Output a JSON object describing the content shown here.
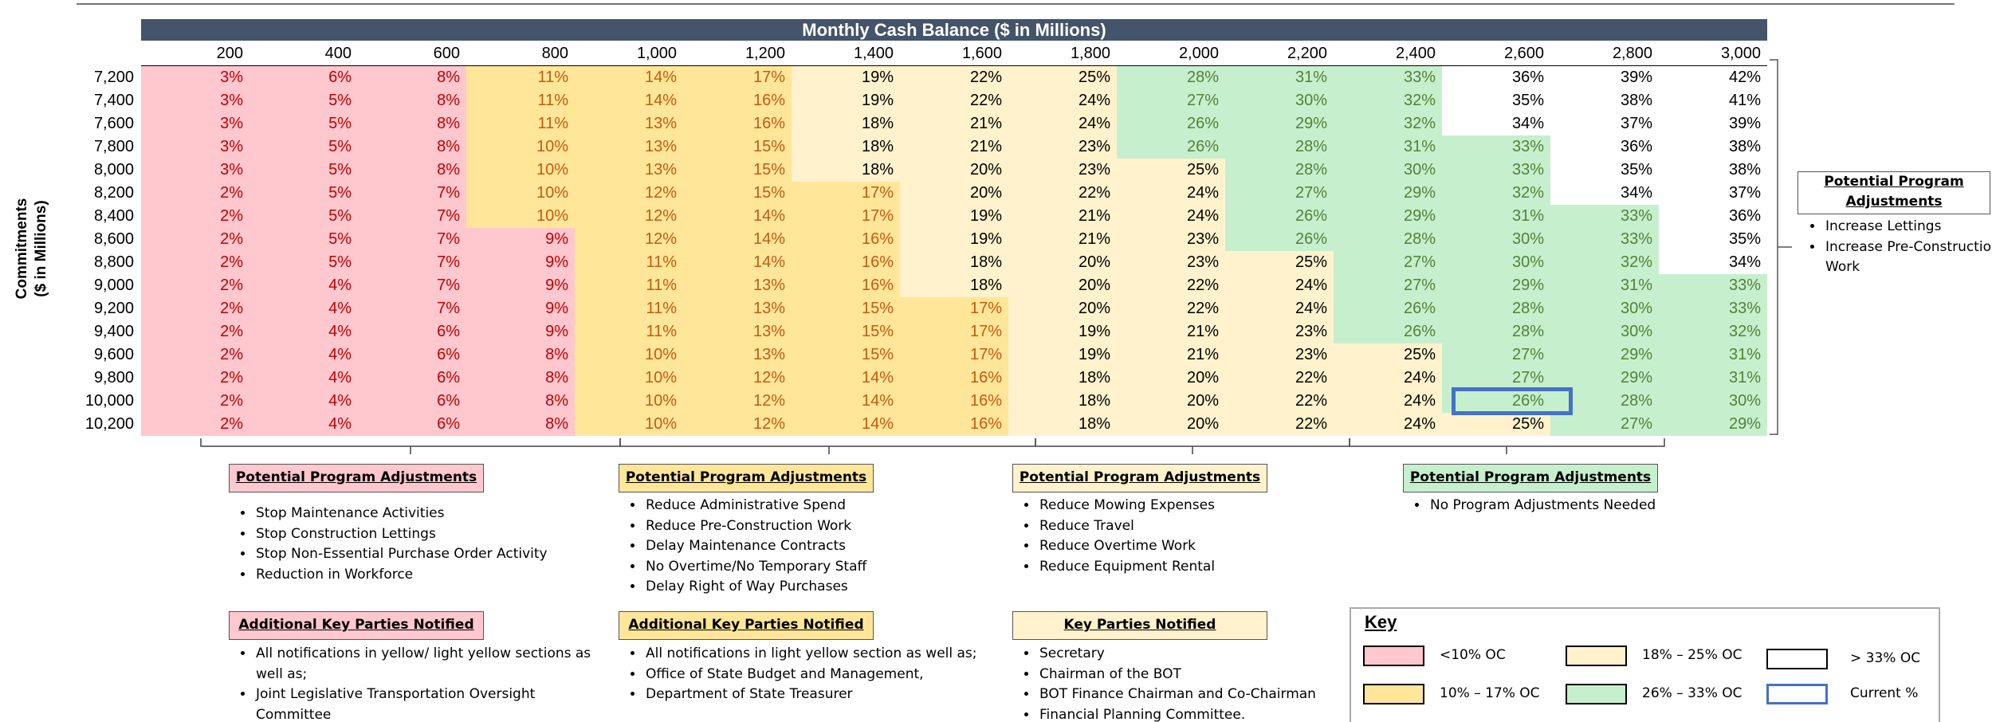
{
  "title": "Monthly Cash Balance ($ in Millions)",
  "row_axis_label": [
    "Commitments",
    "($ in Millions)"
  ],
  "table": {
    "columns": [
      "200",
      "400",
      "600",
      "800",
      "1,000",
      "1,200",
      "1,400",
      "1,600",
      "1,800",
      "2,000",
      "2,200",
      "2,400",
      "2,600",
      "2,800",
      "3,000"
    ],
    "rows": [
      {
        "label": "7,200",
        "cells": [
          "3%",
          "6%",
          "8%",
          "11%",
          "14%",
          "17%",
          "19%",
          "22%",
          "25%",
          "28%",
          "31%",
          "33%",
          "36%",
          "39%",
          "42%"
        ]
      },
      {
        "label": "7,400",
        "cells": [
          "3%",
          "5%",
          "8%",
          "11%",
          "14%",
          "16%",
          "19%",
          "22%",
          "24%",
          "27%",
          "30%",
          "32%",
          "35%",
          "38%",
          "41%"
        ]
      },
      {
        "label": "7,600",
        "cells": [
          "3%",
          "5%",
          "8%",
          "11%",
          "13%",
          "16%",
          "18%",
          "21%",
          "24%",
          "26%",
          "29%",
          "32%",
          "34%",
          "37%",
          "39%"
        ]
      },
      {
        "label": "7,800",
        "cells": [
          "3%",
          "5%",
          "8%",
          "10%",
          "13%",
          "15%",
          "18%",
          "21%",
          "23%",
          "26%",
          "28%",
          "31%",
          "33%",
          "36%",
          "38%"
        ]
      },
      {
        "label": "8,000",
        "cells": [
          "3%",
          "5%",
          "8%",
          "10%",
          "13%",
          "15%",
          "18%",
          "20%",
          "23%",
          "25%",
          "28%",
          "30%",
          "33%",
          "35%",
          "38%"
        ]
      },
      {
        "label": "8,200",
        "cells": [
          "2%",
          "5%",
          "7%",
          "10%",
          "12%",
          "15%",
          "17%",
          "20%",
          "22%",
          "24%",
          "27%",
          "29%",
          "32%",
          "34%",
          "37%"
        ]
      },
      {
        "label": "8,400",
        "cells": [
          "2%",
          "5%",
          "7%",
          "10%",
          "12%",
          "14%",
          "17%",
          "19%",
          "21%",
          "24%",
          "26%",
          "29%",
          "31%",
          "33%",
          "36%"
        ]
      },
      {
        "label": "8,600",
        "cells": [
          "2%",
          "5%",
          "7%",
          "9%",
          "12%",
          "14%",
          "16%",
          "19%",
          "21%",
          "23%",
          "26%",
          "28%",
          "30%",
          "33%",
          "35%"
        ]
      },
      {
        "label": "8,800",
        "cells": [
          "2%",
          "5%",
          "7%",
          "9%",
          "11%",
          "14%",
          "16%",
          "18%",
          "20%",
          "23%",
          "25%",
          "27%",
          "30%",
          "32%",
          "34%"
        ]
      },
      {
        "label": "9,000",
        "cells": [
          "2%",
          "4%",
          "7%",
          "9%",
          "11%",
          "13%",
          "16%",
          "18%",
          "20%",
          "22%",
          "24%",
          "27%",
          "29%",
          "31%",
          "33%"
        ]
      },
      {
        "label": "9,200",
        "cells": [
          "2%",
          "4%",
          "7%",
          "9%",
          "11%",
          "13%",
          "15%",
          "17%",
          "20%",
          "22%",
          "24%",
          "26%",
          "28%",
          "30%",
          "33%"
        ]
      },
      {
        "label": "9,400",
        "cells": [
          "2%",
          "4%",
          "6%",
          "9%",
          "11%",
          "13%",
          "15%",
          "17%",
          "19%",
          "21%",
          "23%",
          "26%",
          "28%",
          "30%",
          "32%"
        ]
      },
      {
        "label": "9,600",
        "cells": [
          "2%",
          "4%",
          "6%",
          "8%",
          "10%",
          "13%",
          "15%",
          "17%",
          "19%",
          "21%",
          "23%",
          "25%",
          "27%",
          "29%",
          "31%"
        ]
      },
      {
        "label": "9,800",
        "cells": [
          "2%",
          "4%",
          "6%",
          "8%",
          "10%",
          "12%",
          "14%",
          "16%",
          "18%",
          "20%",
          "22%",
          "24%",
          "27%",
          "29%",
          "31%"
        ]
      },
      {
        "label": "10,000",
        "cells": [
          "2%",
          "4%",
          "6%",
          "8%",
          "10%",
          "12%",
          "14%",
          "16%",
          "18%",
          "20%",
          "22%",
          "24%",
          "26%",
          "28%",
          "30%"
        ]
      },
      {
        "label": "10,200",
        "cells": [
          "2%",
          "4%",
          "6%",
          "8%",
          "10%",
          "12%",
          "14%",
          "16%",
          "18%",
          "20%",
          "22%",
          "24%",
          "25%",
          "27%",
          "29%"
        ]
      }
    ]
  },
  "side_panel": {
    "title": "Potential Program Adjustments",
    "items": [
      "Increase Lettings",
      "Increase Pre-Construction Work"
    ]
  },
  "sections": [
    {
      "adjustments_title": "Potential Program Adjustments",
      "adjustments": [
        "Stop Maintenance Activities",
        "Stop Construction Lettings",
        "Stop Non-Essential Purchase Order Activity",
        "Reduction in Workforce"
      ],
      "parties_title": "Additional Key Parties Notified",
      "parties": [
        "All notifications in yellow/ light yellow sections as well as;",
        "Joint Legislative Transportation Oversight Committee"
      ]
    },
    {
      "adjustments_title": "Potential Program Adjustments",
      "adjustments": [
        "Reduce Administrative Spend",
        "Reduce Pre-Construction Work",
        "Delay Maintenance Contracts",
        "No Overtime/No Temporary Staff",
        "Delay Right of Way Purchases"
      ],
      "parties_title": "Additional Key Parties Notified",
      "parties": [
        "All notifications in light yellow section as well as;",
        "Office of State Budget and Management,",
        "Department of State Treasurer"
      ]
    },
    {
      "adjustments_title": "Potential Program Adjustments",
      "adjustments": [
        "Reduce Mowing Expenses",
        "Reduce Travel",
        "Reduce Overtime Work",
        "Reduce Equipment Rental"
      ],
      "parties_title": "Key Parties Notified",
      "parties": [
        "Secretary",
        "Chairman of the BOT",
        "BOT Finance Chairman and Co-Chairman",
        "Financial Planning Committee."
      ]
    },
    {
      "adjustments_title": "Potential Program Adjustments",
      "adjustments": [
        "No Program Adjustments Needed"
      ]
    }
  ],
  "key": {
    "title": "Key",
    "items": [
      {
        "label": "<10% OC",
        "color": "#ffc7ce"
      },
      {
        "label": "10% – 17% OC",
        "color": "#ffe699"
      },
      {
        "label": "18% – 25% OC",
        "color": "#fff2cc"
      },
      {
        "label": "26% – 33% OC",
        "color": "#c6efce"
      },
      {
        "label": "> 33% OC",
        "color": "#ffffff"
      },
      {
        "label": "Current %",
        "color": "#4472c4"
      }
    ]
  }
}
